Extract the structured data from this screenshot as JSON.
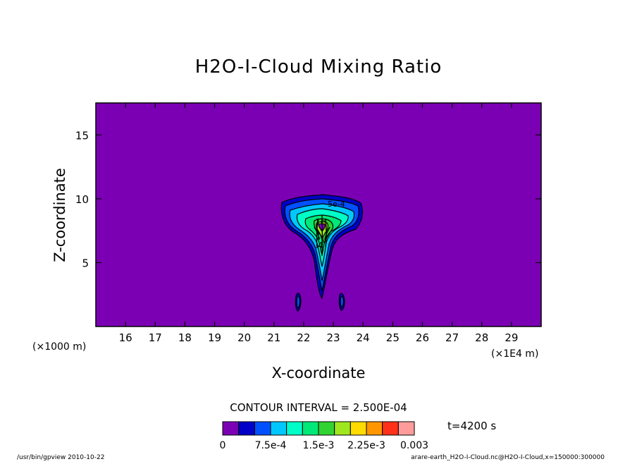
{
  "chart_data": {
    "type": "heatmap",
    "title": "H2O-I-Cloud Mixing Ratio",
    "xlabel": "X-coordinate",
    "ylabel": "Z-coordinate",
    "x_unit_left": "(×1000 m)",
    "x_unit_right": "(×1E4 m)",
    "x_ticks": [
      "16",
      "17",
      "18",
      "19",
      "20",
      "21",
      "22",
      "23",
      "24",
      "25",
      "26",
      "27",
      "28",
      "29"
    ],
    "y_ticks": [
      "5",
      "10",
      "15"
    ],
    "xlim": [
      15.0,
      30.0
    ],
    "ylim": [
      0,
      17.5
    ],
    "contour_interval_text": "CONTOUR INTERVAL = 2.500E-04",
    "time_text": "t=4200 s",
    "contour_labels": [
      "5e-4",
      "1",
      "1e",
      "4"
    ],
    "colorbar": {
      "levels": [
        0,
        0.00025,
        0.0005,
        0.00075,
        0.001,
        0.00125,
        0.0015,
        0.00175,
        0.002,
        0.00225,
        0.0025,
        0.00275,
        0.003
      ],
      "colors": [
        "#7b00b4",
        "#0000c8",
        "#0050ff",
        "#00c8ff",
        "#00ffc8",
        "#00e878",
        "#32d232",
        "#a0e61e",
        "#ffdc00",
        "#ff9600",
        "#ff3219",
        "#ff9b9b"
      ],
      "tick_labels": [
        "0",
        "7.5e-4",
        "1.5e-3",
        "2.25e-3",
        "0.003"
      ],
      "tick_values": [
        0,
        0.00075,
        0.0015,
        0.00225,
        0.003
      ]
    },
    "footer_left": "/usr/bin/gpview   2010-10-22",
    "footer_right": "arare-earth_H2O-I-Cloud.nc@H2O-I-Cloud,x=150000:300000",
    "legend_position": "bottom",
    "grid": false
  }
}
